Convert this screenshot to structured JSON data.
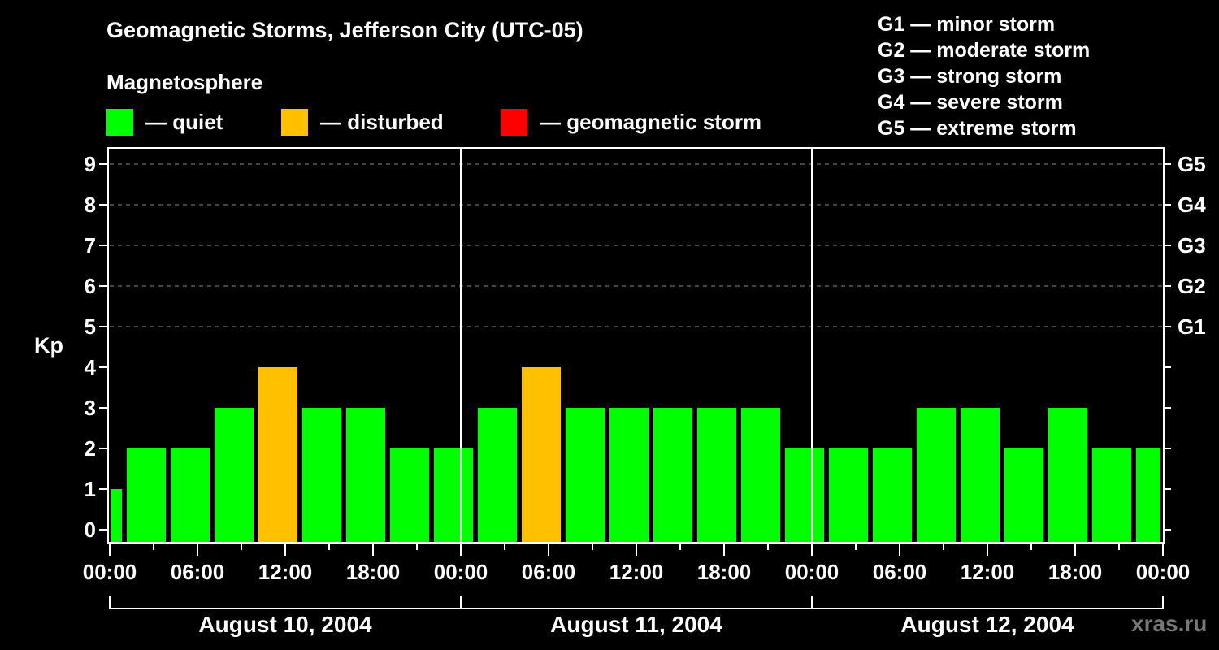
{
  "header": {
    "title": "Geomagnetic Storms, Jefferson City (UTC-05)",
    "subtitle": "Magnetosphere"
  },
  "legend": {
    "items": [
      {
        "label": "— quiet",
        "color": "#00ff00"
      },
      {
        "label": "— disturbed",
        "color": "#ffc000"
      },
      {
        "label": "— geomagnetic storm",
        "color": "#ff0000"
      }
    ]
  },
  "storm_scale": {
    "items": [
      "G1 — minor storm",
      "G2 — moderate storm",
      "G3 — strong storm",
      "G4 — severe storm",
      "G5 — extreme storm"
    ]
  },
  "axes": {
    "ylabel": "Kp",
    "yticks": [
      "0",
      "1",
      "2",
      "3",
      "4",
      "5",
      "6",
      "7",
      "8",
      "9"
    ],
    "gticks": [
      "G1",
      "G2",
      "G3",
      "G4",
      "G5"
    ],
    "xticks": [
      "00:00",
      "06:00",
      "12:00",
      "18:00",
      "00:00",
      "06:00",
      "12:00",
      "18:00",
      "00:00",
      "06:00",
      "12:00",
      "18:00",
      "00:00"
    ],
    "days": [
      "August 10, 2004",
      "August 11, 2004",
      "August 12, 2004"
    ]
  },
  "watermark": "xras.ru",
  "chart_data": {
    "type": "bar",
    "title": "Geomagnetic Storms, Jefferson City (UTC-05)",
    "subtitle": "Magnetosphere",
    "xlabel": "",
    "ylabel": "Kp",
    "ylim": [
      0,
      9
    ],
    "grid": "horizontal dashed at Kp 5-9",
    "legend": [
      "quiet",
      "disturbed",
      "geomagnetic storm"
    ],
    "legend_colors": [
      "#00ff00",
      "#ffc000",
      "#ff0000"
    ],
    "secondary_yaxis": {
      "5": "G1",
      "6": "G2",
      "7": "G3",
      "8": "G4",
      "9": "G5"
    },
    "x_start_hours_offset": [
      0,
      1
    ],
    "categories": [
      "Aug 10 00:00-01:00",
      "Aug 10 01:00",
      "Aug 10 04:00",
      "Aug 10 07:00",
      "Aug 10 10:00",
      "Aug 10 13:00",
      "Aug 10 16:00",
      "Aug 10 19:00",
      "Aug 10 22:00",
      "Aug 11 01:00",
      "Aug 11 04:00",
      "Aug 11 07:00",
      "Aug 11 10:00",
      "Aug 11 13:00",
      "Aug 11 16:00",
      "Aug 11 19:00",
      "Aug 11 22:00",
      "Aug 12 01:00",
      "Aug 12 04:00",
      "Aug 12 07:00",
      "Aug 12 10:00",
      "Aug 12 13:00",
      "Aug 12 16:00",
      "Aug 12 19:00",
      "Aug 12 22:00-00:00"
    ],
    "values": [
      1,
      2,
      2,
      3,
      4,
      3,
      3,
      2,
      2,
      3,
      4,
      3,
      3,
      3,
      3,
      3,
      2,
      2,
      2,
      3,
      3,
      2,
      3,
      2,
      2
    ],
    "status": [
      "quiet",
      "quiet",
      "quiet",
      "quiet",
      "disturbed",
      "quiet",
      "quiet",
      "quiet",
      "quiet",
      "quiet",
      "disturbed",
      "quiet",
      "quiet",
      "quiet",
      "quiet",
      "quiet",
      "quiet",
      "quiet",
      "quiet",
      "quiet",
      "quiet",
      "quiet",
      "quiet",
      "quiet",
      "quiet"
    ]
  }
}
